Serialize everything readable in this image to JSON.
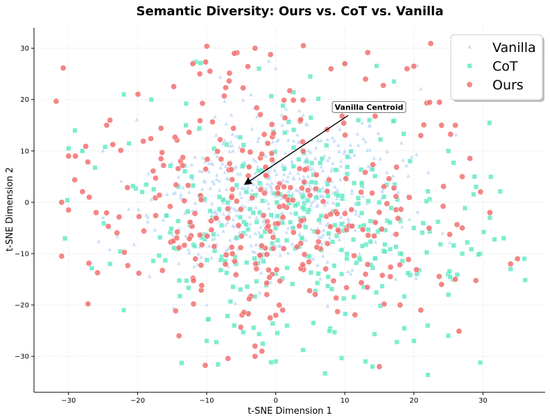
{
  "chart_data": {
    "type": "scatter",
    "title": "Semantic Diversity: Ours vs. CoT vs. Vanilla",
    "xlabel": "t-SNE Dimension 1",
    "ylabel": "t-SNE Dimension 2",
    "xlim": [
      -35,
      39
    ],
    "ylim": [
      -37,
      34
    ],
    "xticks": [
      -30,
      -20,
      -10,
      0,
      10,
      20,
      30
    ],
    "yticks": [
      -30,
      -20,
      -10,
      0,
      10,
      20,
      30
    ],
    "grid": true,
    "legend_position": "top-right",
    "series": [
      {
        "name": "Vanilla",
        "marker": "triangle",
        "color": "#b9d7f7",
        "distribution": {
          "center": [
            0,
            2
          ],
          "spread": [
            9,
            8
          ],
          "count": 500,
          "seed": 11
        },
        "points": [
          [
            -1,
            27.5
          ],
          [
            0,
            26
          ],
          [
            -25,
            10
          ],
          [
            -28,
            10
          ],
          [
            -24,
            -5
          ],
          [
            -10,
            -20
          ],
          [
            -25,
            -3
          ],
          [
            4,
            2
          ],
          [
            10,
            10
          ]
        ]
      },
      {
        "name": "CoT",
        "marker": "square",
        "color": "#5fe9c3",
        "distribution": {
          "center": [
            3,
            -5
          ],
          "spread": [
            13,
            11
          ],
          "count": 340,
          "seed": 23
        },
        "points": [
          [
            -30,
            10.5
          ],
          [
            -28,
            10
          ],
          [
            -22,
            21
          ],
          [
            -18,
            20
          ],
          [
            -13,
            15
          ],
          [
            -22,
            -21
          ],
          [
            -24,
            -12
          ],
          [
            -10,
            -27
          ],
          [
            -6,
            -24
          ],
          [
            0,
            -31
          ],
          [
            5,
            24.5
          ],
          [
            10,
            27
          ],
          [
            13,
            -31
          ],
          [
            14,
            -32
          ],
          [
            20,
            -27
          ],
          [
            22,
            -24
          ],
          [
            25,
            10
          ],
          [
            29,
            3
          ],
          [
            34,
            -13
          ],
          [
            36,
            -11
          ],
          [
            31,
            -3
          ],
          [
            33,
            -7
          ],
          [
            27,
            -10
          ],
          [
            25,
            -18
          ],
          [
            20,
            -5
          ]
        ]
      },
      {
        "name": "Ours",
        "marker": "circle",
        "color": "#f37272",
        "distribution": {
          "center": [
            0,
            0
          ],
          "spread": [
            14,
            13
          ],
          "count": 300,
          "seed": 37
        },
        "points": [
          [
            -3,
            30
          ],
          [
            4,
            30.5
          ],
          [
            -6,
            29
          ],
          [
            -12,
            27
          ],
          [
            -11,
            25
          ],
          [
            8,
            26
          ],
          [
            10,
            27
          ],
          [
            13,
            24
          ],
          [
            19,
            26
          ],
          [
            20,
            26.5
          ],
          [
            -31,
            -10.5
          ],
          [
            -30,
            9
          ],
          [
            -29,
            9
          ],
          [
            -31,
            0
          ],
          [
            -30,
            -1.5
          ],
          [
            -24,
            16
          ],
          [
            -14,
            -26
          ],
          [
            -3,
            -28
          ],
          [
            -2,
            -29
          ],
          [
            -3,
            -30
          ],
          [
            0,
            -22
          ],
          [
            1,
            -21
          ],
          [
            13,
            -14
          ],
          [
            15,
            -32
          ],
          [
            35,
            -11
          ],
          [
            34,
            -12
          ],
          [
            31,
            -2
          ],
          [
            27,
            5
          ],
          [
            27,
            -5
          ],
          [
            26,
            -15
          ],
          [
            24,
            -16
          ],
          [
            21,
            -21
          ],
          [
            18,
            -20
          ],
          [
            24,
            15
          ],
          [
            26,
            15
          ],
          [
            21,
            13
          ],
          [
            -26,
            -2
          ],
          [
            -27,
            1
          ]
        ]
      }
    ],
    "annotations": [
      {
        "text": "Vanilla Centroid",
        "target": [
          -4.5,
          3.5
        ],
        "text_anchor": [
          13.5,
          18
        ]
      }
    ]
  }
}
